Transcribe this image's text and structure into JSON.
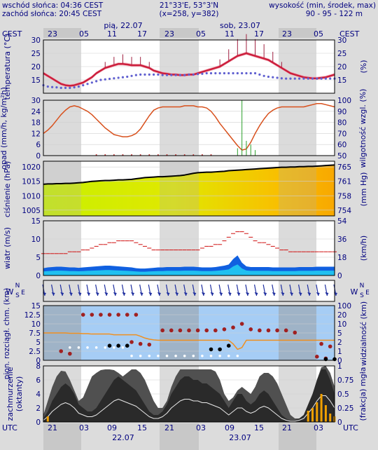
{
  "header": {
    "sunrise": "wschód słońca: 04:36 CEST",
    "sunset": "zachód słońca: 20:45 CEST",
    "coords": "21°33'E, 53°3'N",
    "grid": "(x=258, y=382)",
    "elev_label": "wysokość (min, środek, max)",
    "elev_values": "90 - 95 - 122 m"
  },
  "top_axis": {
    "tz_left": "CEST",
    "tz_right": "CEST",
    "hours": [
      "23",
      "05",
      "11",
      "17",
      "23",
      "05",
      "11",
      "17",
      "23",
      "05"
    ],
    "dates": [
      "pią, 22.07",
      "sob, 23.07"
    ]
  },
  "bottom_axis": {
    "tz_left": "UTC",
    "tz_right": "UTC",
    "hours": [
      "21",
      "03",
      "09",
      "15",
      "21",
      "03",
      "09",
      "15",
      "21",
      "03"
    ],
    "dates": [
      "22.07",
      "23.07"
    ]
  },
  "colors": {
    "night_band": "#c8c8c8",
    "panel_bg": "#ffffff",
    "temp_line": "#cc1e3c",
    "dew_points": "#6060d0",
    "humidity_line": "#d8501c",
    "precip_bar": "#2ca02c",
    "pressure_line": "#000000",
    "wind_gust": "#d01010",
    "wind_fill": "#1060e0",
    "wind_fill_light": "#20c0f0",
    "sky_blue": "#a6cdf5",
    "visibility_line": "#f09020",
    "cloud_dot": "#a02020",
    "fog_bar": "#f0a000",
    "text": "#00007f"
  },
  "chart_data": [
    {
      "id": "temperature",
      "type": "line",
      "ylabel": "temperatura (°C)",
      "ylim": [
        10,
        30
      ],
      "ticks": [
        15,
        20,
        25,
        30
      ],
      "series": [
        {
          "values": [
            17.5,
            16.5,
            15.5,
            14.5,
            13.5,
            13,
            12.8,
            13,
            13.5,
            14,
            15,
            16,
            17.5,
            18.5,
            19.5,
            20,
            20.5,
            21,
            21,
            20.8,
            20.5,
            20.5,
            20.5,
            20,
            19.5,
            18.5,
            18,
            17.5,
            17.3,
            17,
            17,
            16.8,
            16.8,
            17,
            17,
            17.5,
            18,
            18.5,
            19,
            19.5,
            20,
            21,
            22,
            23,
            24,
            24.5,
            25,
            24.5,
            24,
            23.5,
            23,
            22.5,
            21.5,
            20.5,
            19.5,
            18.5,
            17.5,
            17,
            16.5,
            16,
            15.8,
            15.6,
            15.6,
            15.8,
            16,
            16.5,
            17
          ]
        },
        {
          "values": [
            13,
            12.5,
            12.3,
            12.2,
            12,
            12,
            12,
            12.2,
            12.5,
            13,
            13.5,
            14,
            14.5,
            15,
            15.2,
            15.4,
            15.6,
            15.8,
            16,
            16.2,
            16.5,
            16.8,
            17,
            17,
            17,
            17,
            17,
            16.8,
            16.8,
            16.8,
            16.8,
            16.8,
            16.8,
            17,
            17,
            17.2,
            17.3,
            17.5,
            17.5,
            17.5,
            17.5,
            17.5,
            17.5,
            17.5,
            17.5,
            17.5,
            17.5,
            17.5,
            17.5,
            17,
            16.5,
            16.2,
            16,
            15.8,
            15.6,
            15.5,
            15.5,
            15.5,
            15.5,
            15.5,
            15.5,
            15.5,
            15.5,
            15.5,
            15.5,
            15.5,
            15.5
          ]
        }
      ]
    },
    {
      "id": "humidity",
      "type": "line",
      "ylabel": "opad (mm/h, kg/m²h)",
      "y2label": "wilgotność wzgl. (%)",
      "ylim": [
        0,
        30
      ],
      "y2lim": [
        50,
        100
      ],
      "ticks": [
        0,
        6,
        12,
        18,
        24,
        30
      ],
      "ticks2": [
        50,
        60,
        70,
        80,
        90,
        100
      ],
      "series": [
        {
          "values": [
            70,
            73,
            77,
            82,
            87,
            91,
            94,
            95,
            94,
            92,
            90,
            87,
            83,
            79,
            75,
            72,
            69,
            68,
            67,
            67,
            68,
            70,
            74,
            80,
            86,
            91,
            93,
            94,
            94,
            94,
            94,
            94,
            95,
            95,
            95,
            94,
            94,
            93,
            90,
            85,
            79,
            74,
            69,
            64,
            59,
            55,
            56,
            62,
            70,
            77,
            83,
            88,
            91,
            93,
            94,
            94,
            94,
            94,
            94,
            94,
            95,
            96,
            97,
            97,
            96,
            95,
            94
          ]
        }
      ],
      "precip_peak_mm": 30
    },
    {
      "id": "pressure",
      "type": "area",
      "ylabel": "ciśnienie (hPa)",
      "y2label": "(mm Hg)",
      "ylim": [
        1003,
        1022
      ],
      "ticks": [
        1005,
        1010,
        1015,
        1020
      ],
      "ticks2": [
        754,
        758,
        761,
        765
      ],
      "series": [
        {
          "values": [
            1014,
            1014.1,
            1014.1,
            1014.2,
            1014.2,
            1014.3,
            1014.3,
            1014.4,
            1014.5,
            1014.6,
            1014.8,
            1015,
            1015.1,
            1015.2,
            1015.3,
            1015.3,
            1015.4,
            1015.5,
            1015.5,
            1015.6,
            1015.7,
            1015.9,
            1016.1,
            1016.3,
            1016.4,
            1016.5,
            1016.6,
            1016.6,
            1016.7,
            1016.8,
            1016.9,
            1017,
            1017.2,
            1017.5,
            1017.8,
            1018,
            1018.1,
            1018.2,
            1018.2,
            1018.3,
            1018.4,
            1018.5,
            1018.7,
            1018.8,
            1018.9,
            1019,
            1019.1,
            1019.2,
            1019.3,
            1019.4,
            1019.5,
            1019.6,
            1019.7,
            1019.8,
            1019.9,
            1019.9,
            1020,
            1020,
            1020.1,
            1020.1,
            1020.2,
            1020.2,
            1020.3,
            1020.4,
            1020.5,
            1020.6,
            1020.7
          ]
        }
      ]
    },
    {
      "id": "wind",
      "type": "area",
      "ylabel": "wiatr (m/s)",
      "y2label": "(km/h)",
      "ylim": [
        0,
        15
      ],
      "ticks": [
        0,
        5,
        10,
        15
      ],
      "ticks2": [
        0,
        18,
        36,
        54
      ],
      "series": [
        {
          "values": [
            2,
            2.2,
            2.3,
            2.4,
            2.4,
            2.3,
            2.2,
            2.2,
            2.1,
            2.2,
            2.3,
            2.4,
            2.5,
            2.6,
            2.7,
            2.7,
            2.6,
            2.5,
            2.4,
            2.3,
            2.2,
            2,
            1.9,
            1.9,
            2,
            2.1,
            2.2,
            2.2,
            2.3,
            2.3,
            2.3,
            2.3,
            2.4,
            2.4,
            2.4,
            2.3,
            2.2,
            2.2,
            2.2,
            2.3,
            2.5,
            2.7,
            3,
            4.5,
            5.5,
            3.5,
            2.5,
            2.3,
            2.3,
            2.3,
            2.3,
            2.3,
            2.2,
            2.2,
            2.2,
            2.2,
            2.2,
            2.2,
            2.3,
            2.3,
            2.3,
            2.3,
            2.4,
            2.4,
            2.4,
            2.4,
            2.4
          ]
        },
        {
          "values": [
            6,
            6,
            6,
            6,
            6,
            6,
            6.5,
            6.5,
            6.5,
            7,
            7,
            7.5,
            8,
            8.5,
            8.5,
            9,
            9,
            9.5,
            9.5,
            9.5,
            9.5,
            9,
            8.5,
            8,
            7.5,
            7,
            7,
            7,
            7,
            7,
            7,
            7,
            7,
            7,
            7,
            7,
            7.5,
            8,
            8,
            8.5,
            8.5,
            9.5,
            10.5,
            11.5,
            12,
            12,
            11.5,
            10.5,
            9.5,
            9,
            9,
            8.5,
            8,
            7.5,
            7,
            7,
            6.5,
            6.5,
            6.5,
            6.5,
            6.5,
            6.5,
            6.5,
            6.5,
            6.5,
            6.5,
            6.5
          ]
        }
      ]
    },
    {
      "id": "clouds",
      "type": "scatter",
      "ylabel": "pion. rozciągł. chm. (km)",
      "y2label": "widzialność (km)",
      "ylim": [
        0,
        15
      ],
      "ticks": [
        0,
        2.5,
        5,
        7.5,
        10,
        12.5,
        15
      ],
      "ticks2": [
        0,
        1,
        2,
        5,
        10,
        20,
        100
      ],
      "series": [
        {
          "values": [
            7.5,
            7.5,
            7.5,
            7.5,
            7.5,
            7.5,
            7.4,
            7.4,
            7.4,
            7.3,
            7.3,
            7.2,
            7.2,
            7.2,
            7.2,
            7.2,
            7.0,
            7.0,
            7.0,
            7.0,
            7.0,
            7.0,
            6.6,
            6.1,
            5.8,
            5.6,
            5.5,
            5.5,
            5.5,
            5.5,
            5.5,
            5.5,
            5.5,
            5.5,
            5.5,
            5.5,
            5.5,
            5.5,
            5.5,
            5.5,
            5.5,
            5.5,
            5.5,
            4.5,
            3.0,
            3.5,
            5.5,
            5.5,
            5.5,
            5.5,
            5.5,
            5.5,
            5.5,
            5.5,
            5.5,
            5.5,
            5.5,
            5.5,
            5.5,
            5.5,
            5.5,
            5.5,
            5.5,
            5.5,
            5.5,
            5.5,
            5.5
          ]
        }
      ]
    },
    {
      "id": "cloudcover",
      "type": "area",
      "ylabel": "zachmurzenie (oktanty)",
      "y2label": "(frakcja) mgła",
      "ylim": [
        0,
        8
      ],
      "ticks": [
        0,
        2,
        4,
        6,
        8
      ],
      "ticks2": [
        0,
        0.25,
        0.5,
        0.75,
        1
      ],
      "series": [
        {
          "values": [
            1,
            3,
            5,
            6.5,
            7.3,
            7.2,
            6,
            4.5,
            3,
            3.5,
            5,
            6.5,
            7,
            7.4,
            7.5,
            7.5,
            7.4,
            7,
            6.5,
            7,
            7.5,
            7.5,
            7,
            6,
            4.5,
            3,
            2,
            2,
            3,
            5,
            6.5,
            7.5,
            7.5,
            7.5,
            7.5,
            7.5,
            7.5,
            7.5,
            7.5,
            7.2,
            6,
            4,
            3,
            3.5,
            4.5,
            5,
            4.5,
            4,
            5,
            6.5,
            7,
            7,
            6.5,
            5.5,
            4,
            2.5,
            1,
            0.5,
            0.5,
            0.5,
            1,
            3,
            6,
            7.8,
            8,
            7,
            5
          ]
        },
        {
          "values": [
            0.5,
            1.5,
            3,
            4,
            5,
            5.5,
            5,
            4,
            2.5,
            2,
            1.5,
            1.5,
            2,
            3,
            4,
            5,
            6,
            6.5,
            6,
            5.5,
            5,
            4.5,
            3.5,
            2.5,
            1.5,
            1,
            1,
            1.5,
            2.5,
            4,
            5,
            6,
            6.5,
            6.5,
            6,
            6,
            5.5,
            5.5,
            5,
            4.5,
            4,
            3,
            2,
            3,
            4,
            4,
            3,
            2.5,
            3,
            4,
            4.5,
            4,
            3,
            2,
            1,
            0.5,
            0.2,
            0.2,
            0.5,
            1,
            2.5,
            4,
            6,
            7.5,
            7.5,
            6,
            4
          ]
        }
      ],
      "fog": [
        0,
        0.1,
        0,
        0,
        0,
        0,
        0,
        0,
        0,
        0,
        0,
        0,
        0,
        0,
        0,
        0,
        0,
        0,
        0,
        0,
        0,
        0,
        0,
        0,
        0,
        0,
        0,
        0,
        0,
        0,
        0,
        0,
        0,
        0,
        0,
        0,
        0,
        0,
        0,
        0,
        0,
        0,
        0,
        0,
        0,
        0,
        0,
        0,
        0,
        0,
        0,
        0,
        0,
        0,
        0,
        0,
        0,
        0,
        0,
        0,
        0.2,
        0.25,
        0.35,
        0.5,
        0.3,
        0.15,
        0.1
      ]
    }
  ]
}
